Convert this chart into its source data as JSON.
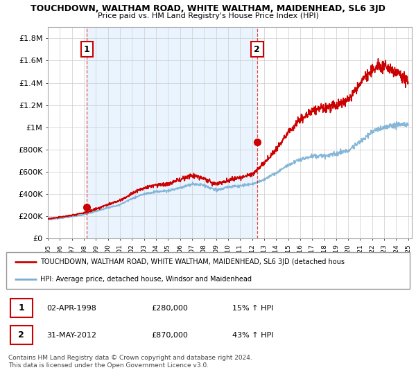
{
  "title": "TOUCHDOWN, WALTHAM ROAD, WHITE WALTHAM, MAIDENHEAD, SL6 3JD",
  "subtitle": "Price paid vs. HM Land Registry's House Price Index (HPI)",
  "ylim": [
    0,
    1900000
  ],
  "yticks": [
    0,
    200000,
    400000,
    600000,
    800000,
    1000000,
    1200000,
    1400000,
    1600000,
    1800000
  ],
  "ytick_labels": [
    "£0",
    "£200K",
    "£400K",
    "£600K",
    "£800K",
    "£1M",
    "£1.2M",
    "£1.4M",
    "£1.6M",
    "£1.8M"
  ],
  "x_start_year": 1995,
  "x_end_year": 2025,
  "sale1_year": 1998.25,
  "sale1_price": 280000,
  "sale1_label": "1",
  "sale2_year": 2012.42,
  "sale2_price": 870000,
  "sale2_label": "2",
  "red_line_color": "#cc0000",
  "blue_line_color": "#7aafd4",
  "dashed_vline_color": "#cc0000",
  "shade_color": "#ddeeff",
  "background_color": "#ffffff",
  "grid_color": "#cccccc",
  "legend_line1": "TOUCHDOWN, WALTHAM ROAD, WHITE WALTHAM, MAIDENHEAD, SL6 3JD (detached hous",
  "legend_line2": "HPI: Average price, detached house, Windsor and Maidenhead",
  "table_row1": [
    "1",
    "02-APR-1998",
    "£280,000",
    "15% ↑ HPI"
  ],
  "table_row2": [
    "2",
    "31-MAY-2012",
    "£870,000",
    "43% ↑ HPI"
  ],
  "footer": "Contains HM Land Registry data © Crown copyright and database right 2024.\nThis data is licensed under the Open Government Licence v3.0.",
  "hpi_base": {
    "1995": 170000,
    "1996": 182000,
    "1997": 198000,
    "1998": 215000,
    "1999": 245000,
    "2000": 278000,
    "2001": 305000,
    "2002": 360000,
    "2003": 400000,
    "2004": 420000,
    "2005": 430000,
    "2006": 455000,
    "2007": 490000,
    "2008": 480000,
    "2009": 435000,
    "2010": 465000,
    "2011": 475000,
    "2012": 490000,
    "2013": 530000,
    "2014": 590000,
    "2015": 660000,
    "2016": 710000,
    "2017": 740000,
    "2018": 745000,
    "2019": 760000,
    "2020": 790000,
    "2021": 870000,
    "2022": 960000,
    "2023": 1000000,
    "2024": 1020000,
    "2025": 1020000
  },
  "red_base": {
    "1995": 178000,
    "1996": 192000,
    "1997": 210000,
    "1998": 230000,
    "1999": 265000,
    "2000": 305000,
    "2001": 340000,
    "2002": 405000,
    "2003": 455000,
    "2004": 480000,
    "2005": 490000,
    "2006": 530000,
    "2007": 570000,
    "2008": 540000,
    "2009": 490000,
    "2010": 525000,
    "2011": 545000,
    "2012": 580000,
    "2013": 680000,
    "2014": 800000,
    "2015": 950000,
    "2016": 1070000,
    "2017": 1150000,
    "2018": 1180000,
    "2019": 1200000,
    "2020": 1240000,
    "2021": 1400000,
    "2022": 1520000,
    "2023": 1560000,
    "2024": 1490000,
    "2025": 1430000
  }
}
